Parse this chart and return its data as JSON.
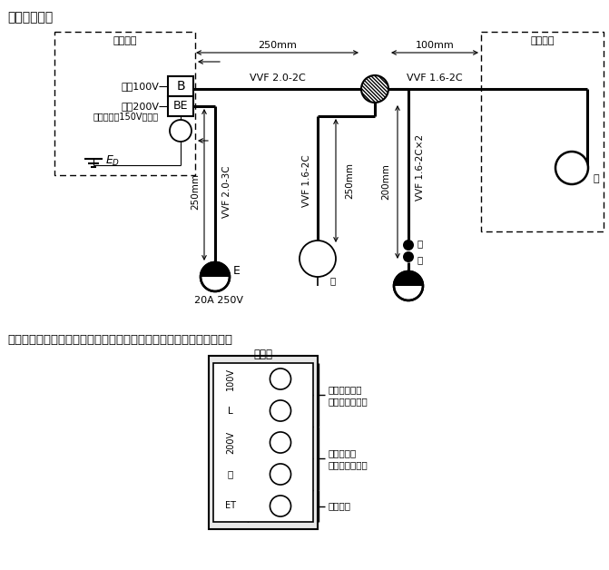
{
  "bg_color": "#ffffff",
  "fig_size": [
    6.71,
    6.28
  ],
  "dpi": 100,
  "fig1_title": "図１．配線図",
  "fig2_title": "図２．配線用遮断器、漏電遮断器及び接地端子代用の端子台の説明図",
  "label_shikoshoryu": "施工省略",
  "label_dengen100": "電源100V",
  "label_dengen200": "電源200V",
  "label_taichi": "（対地電圧150V以下）",
  "label_vvf20_2c": "VVF 2.0-2C",
  "label_vvf16_2c": "VVF 1.6-2C",
  "label_vvf20_3c": "VVF 2.0-3C",
  "label_vvf16_2c_x2": "VVF 1.6-2C×2",
  "label_250mm_top": "250mm",
  "label_100mm_top": "100mm",
  "label_250mm_left": "250mm",
  "label_250mm_mid": "250mm",
  "label_200mm": "200mm",
  "label_20a": "20A 250V",
  "label_E": "E",
  "label_i": "イ",
  "label_ro": "ロ",
  "label_tandai": "端子台",
  "label_haisen": "配線用遮断器",
  "label_2pole1": "（２極１素子）",
  "label_roden": "漏電遮断器",
  "label_2pole2": "（２極２素子）",
  "label_setchi": "接地端子",
  "tb_rows": [
    "100V",
    "L",
    "200V",
    "２",
    "ET"
  ]
}
